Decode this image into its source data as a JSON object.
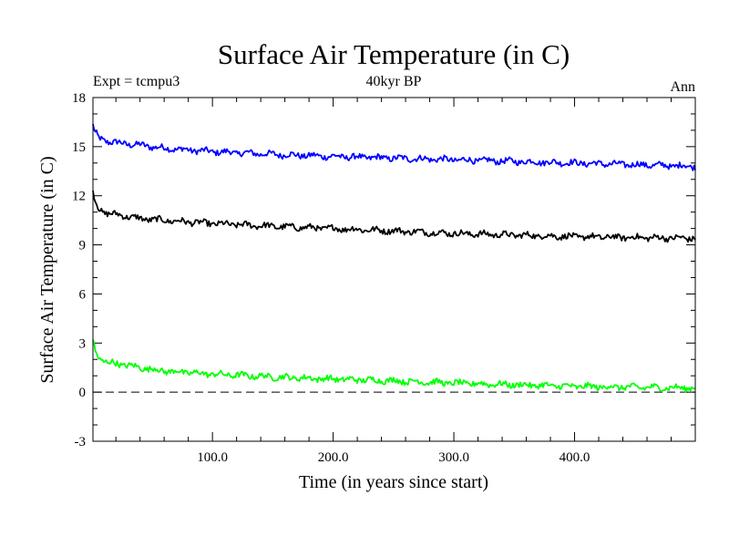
{
  "chart_data": {
    "type": "line",
    "title": "Surface Air Temperature (in C)",
    "header_left": "Expt = tcmpu3",
    "header_center": "40kyr BP",
    "header_right": "Ann",
    "xlabel": "Time (in years since start)",
    "ylabel": "Surface Air Temperature (in C)",
    "xlim": [
      1,
      500
    ],
    "ylim": [
      -3,
      18
    ],
    "x_ticks": [
      100,
      200,
      300,
      400
    ],
    "x_tick_labels": [
      "100.0",
      "200.0",
      "300.0",
      "400.0"
    ],
    "y_ticks": [
      -3,
      0,
      3,
      6,
      9,
      12,
      15,
      18
    ],
    "y_tick_labels": [
      "-3",
      "0",
      "3",
      "6",
      "9",
      "12",
      "15",
      "18"
    ],
    "zero_line": {
      "value": 0,
      "style": "dashed"
    },
    "series": [
      {
        "color": "#0000ff",
        "x": [
          1,
          3,
          6,
          10,
          15,
          25,
          40,
          60,
          80,
          100,
          130,
          160,
          200,
          250,
          300,
          350,
          400,
          450,
          500
        ],
        "values": [
          16.3,
          15.8,
          15.5,
          15.4,
          15.3,
          15.2,
          15.1,
          14.9,
          14.8,
          14.7,
          14.6,
          14.5,
          14.4,
          14.3,
          14.2,
          14.1,
          14.0,
          13.9,
          13.8
        ]
      },
      {
        "color": "#000000",
        "x": [
          1,
          3,
          6,
          10,
          15,
          25,
          40,
          60,
          80,
          100,
          130,
          160,
          200,
          250,
          300,
          350,
          400,
          450,
          500
        ],
        "values": [
          12.2,
          11.6,
          11.2,
          11.0,
          10.9,
          10.8,
          10.6,
          10.5,
          10.4,
          10.3,
          10.2,
          10.1,
          10.0,
          9.85,
          9.7,
          9.6,
          9.5,
          9.45,
          9.4
        ]
      },
      {
        "color": "#00ff00",
        "x": [
          1,
          3,
          6,
          10,
          15,
          25,
          40,
          60,
          80,
          100,
          130,
          160,
          200,
          250,
          300,
          350,
          400,
          450,
          500
        ],
        "values": [
          3.2,
          2.5,
          2.1,
          1.9,
          1.8,
          1.7,
          1.5,
          1.3,
          1.2,
          1.1,
          1.0,
          0.9,
          0.8,
          0.7,
          0.55,
          0.45,
          0.35,
          0.3,
          0.25
        ]
      }
    ]
  }
}
